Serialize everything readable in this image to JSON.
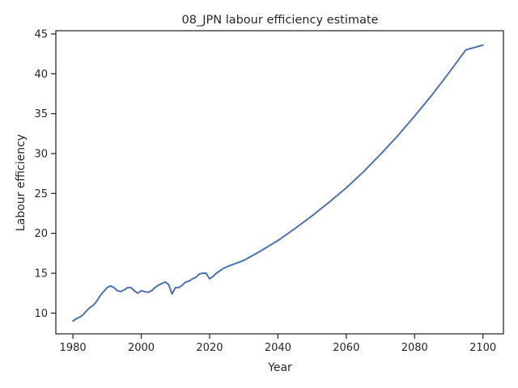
{
  "chart_data": {
    "type": "line",
    "title": "08_JPN labour efficiency estimate",
    "xlabel": "Year",
    "ylabel": "Labour efficiency",
    "xlim": [
      1975,
      2106
    ],
    "ylim": [
      7.4,
      45.4
    ],
    "xticks": [
      1980,
      2000,
      2020,
      2040,
      2060,
      2080,
      2100
    ],
    "yticks": [
      10,
      15,
      20,
      25,
      30,
      35,
      40,
      45
    ],
    "grid": false,
    "legend": "none",
    "series": [
      {
        "color": "#4c72b0",
        "x": [
          1980,
          1981,
          1982,
          1983,
          1984,
          1985,
          1986,
          1987,
          1988,
          1989,
          1990,
          1991,
          1992,
          1993,
          1994,
          1995,
          1996,
          1997,
          1998,
          1999,
          2000,
          2001,
          2002,
          2003,
          2004,
          2005,
          2006,
          2007,
          2008,
          2009,
          2010,
          2011,
          2012,
          2013,
          2014,
          2015,
          2016,
          2017,
          2018,
          2019,
          2020,
          2021,
          2022,
          2023,
          2024,
          2025,
          2030,
          2035,
          2040,
          2045,
          2050,
          2055,
          2060,
          2065,
          2070,
          2075,
          2080,
          2085,
          2090,
          2095,
          2100
        ],
        "y": [
          9.0,
          9.3,
          9.5,
          9.8,
          10.3,
          10.7,
          11.0,
          11.5,
          12.2,
          12.7,
          13.2,
          13.4,
          13.2,
          12.8,
          12.7,
          12.9,
          13.2,
          13.2,
          12.8,
          12.5,
          12.8,
          12.7,
          12.6,
          12.8,
          13.2,
          13.5,
          13.7,
          13.9,
          13.6,
          12.4,
          13.2,
          13.2,
          13.5,
          13.9,
          14.0,
          14.3,
          14.5,
          14.9,
          15.0,
          15.0,
          14.3,
          14.6,
          15.0,
          15.3,
          15.6,
          15.8,
          16.6,
          17.8,
          19.1,
          20.6,
          22.2,
          23.9,
          25.7,
          27.7,
          29.9,
          32.2,
          34.7,
          37.3,
          40.1,
          43.0,
          43.6
        ]
      }
    ]
  }
}
